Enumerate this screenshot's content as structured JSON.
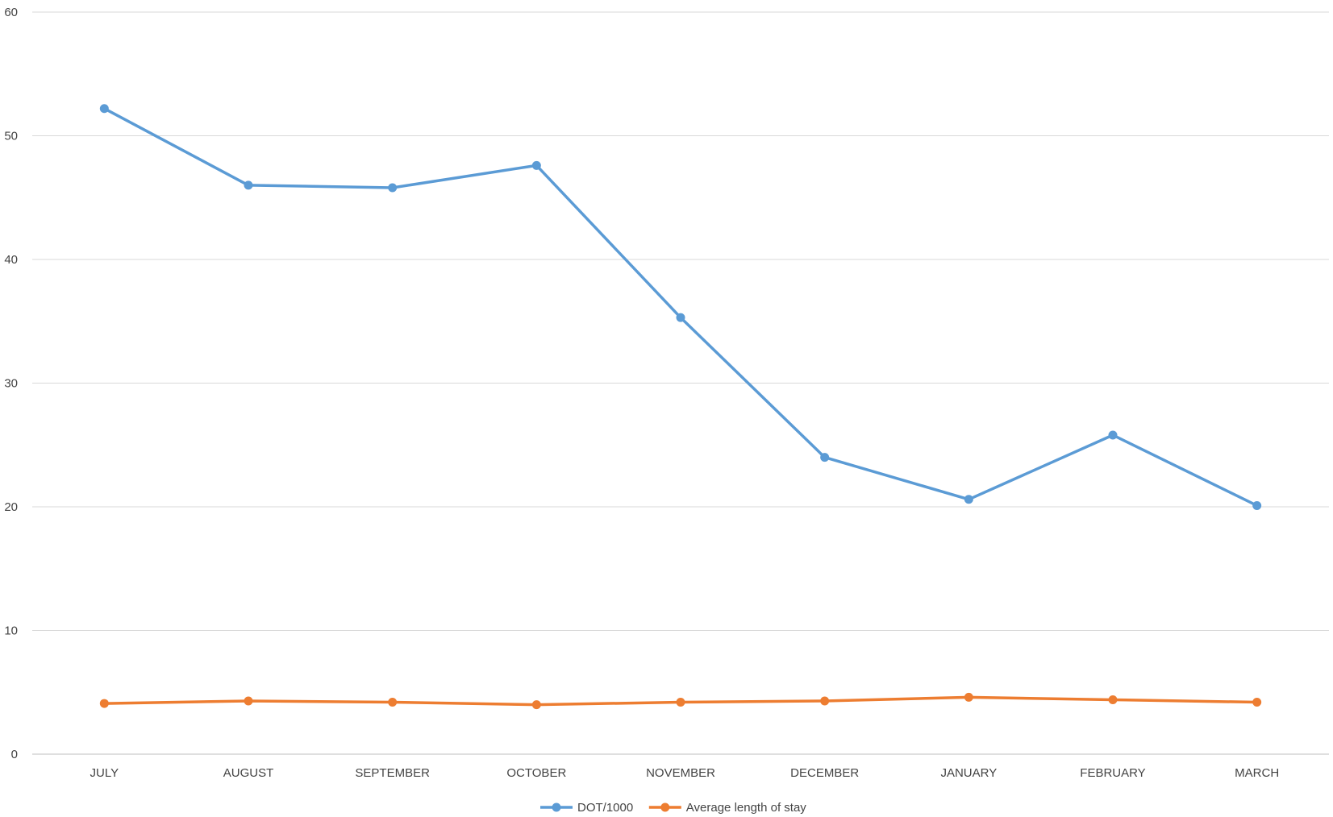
{
  "chart_data": {
    "type": "line",
    "title": "",
    "xlabel": "",
    "ylabel": "",
    "categories": [
      "JULY",
      "AUGUST",
      "SEPTEMBER",
      "OCTOBER",
      "NOVEMBER",
      "DECEMBER",
      "JANUARY",
      "FEBRUARY",
      "MARCH"
    ],
    "ylim": [
      0,
      60
    ],
    "yticks": [
      0,
      10,
      20,
      30,
      40,
      50,
      60
    ],
    "grid": true,
    "legend_position": "bottom",
    "series": [
      {
        "name": "DOT/1000",
        "color": "#5B9BD5",
        "values": [
          52.2,
          46.0,
          45.8,
          47.6,
          35.3,
          24.0,
          20.6,
          25.8,
          20.1
        ]
      },
      {
        "name": "Average length of stay",
        "color": "#ED7D31",
        "values": [
          4.1,
          4.3,
          4.2,
          4.0,
          4.2,
          4.3,
          4.6,
          4.4,
          4.2
        ]
      }
    ]
  }
}
